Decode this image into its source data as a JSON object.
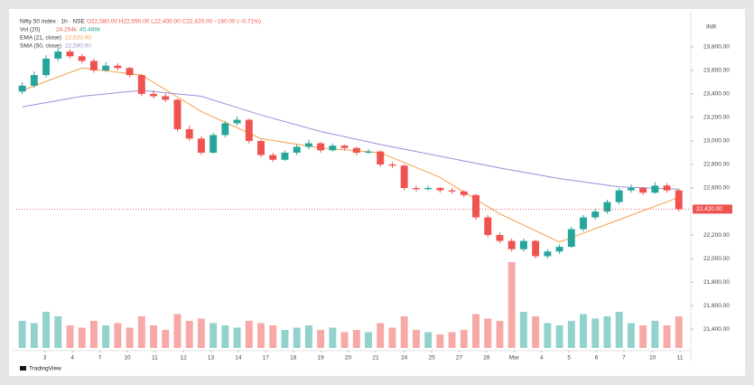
{
  "chart_data": {
    "type": "candlestick",
    "title": "Nifty 50 Index · 1h · NSE",
    "ohlc_label": "O22,580.00 H22,590.00 L22,400.00 C22,420.00 −160.00 (−0.71%)",
    "currency": "INR",
    "vol_label": "Vol (20)",
    "vol_values": [
      "24.294k",
      "45.466k"
    ],
    "up_color": "#26a69a",
    "down_color": "#ef5350",
    "candles": [
      [
        23420,
        23500,
        23400,
        23470
      ],
      [
        23470,
        23590,
        23450,
        23560
      ],
      [
        23560,
        23730,
        23540,
        23700
      ],
      [
        23700,
        23790,
        23680,
        23760
      ],
      [
        23760,
        23780,
        23700,
        23720
      ],
      [
        23720,
        23740,
        23660,
        23680
      ],
      [
        23680,
        23700,
        23580,
        23600
      ],
      [
        23600,
        23670,
        23590,
        23640
      ],
      [
        23640,
        23660,
        23600,
        23620
      ],
      [
        23620,
        23630,
        23540,
        23560
      ],
      [
        23560,
        23570,
        23380,
        23400
      ],
      [
        23400,
        23430,
        23360,
        23380
      ],
      [
        23380,
        23400,
        23330,
        23350
      ],
      [
        23350,
        23360,
        23080,
        23100
      ],
      [
        23100,
        23130,
        23000,
        23020
      ],
      [
        23020,
        23040,
        22880,
        22900
      ],
      [
        22900,
        23070,
        22890,
        23050
      ],
      [
        23050,
        23170,
        23030,
        23150
      ],
      [
        23150,
        23210,
        23130,
        23180
      ],
      [
        23180,
        23190,
        22980,
        23000
      ],
      [
        23000,
        23010,
        22860,
        22880
      ],
      [
        22880,
        22900,
        22820,
        22840
      ],
      [
        22840,
        22920,
        22830,
        22900
      ],
      [
        22900,
        22970,
        22880,
        22950
      ],
      [
        22950,
        23010,
        22930,
        22980
      ],
      [
        22980,
        22990,
        22900,
        22920
      ],
      [
        22920,
        22980,
        22910,
        22960
      ],
      [
        22960,
        22970,
        22920,
        22940
      ],
      [
        22940,
        22950,
        22880,
        22900
      ],
      [
        22900,
        22930,
        22890,
        22910
      ],
      [
        22910,
        22920,
        22780,
        22800
      ],
      [
        22800,
        22820,
        22770,
        22790
      ],
      [
        22790,
        22800,
        22580,
        22600
      ],
      [
        22600,
        22620,
        22570,
        22590
      ],
      [
        22590,
        22620,
        22580,
        22600
      ],
      [
        22600,
        22610,
        22560,
        22580
      ],
      [
        22580,
        22600,
        22550,
        22570
      ],
      [
        22570,
        22580,
        22520,
        22540
      ],
      [
        22540,
        22550,
        22330,
        22350
      ],
      [
        22350,
        22370,
        22180,
        22200
      ],
      [
        22200,
        22220,
        22130,
        22150
      ],
      [
        22150,
        22170,
        22060,
        22080
      ],
      [
        22080,
        22170,
        22060,
        22150
      ],
      [
        22150,
        22160,
        22000,
        22020
      ],
      [
        22020,
        22080,
        22000,
        22060
      ],
      [
        22060,
        22120,
        22040,
        22100
      ],
      [
        22100,
        22270,
        22090,
        22250
      ],
      [
        22250,
        22370,
        22230,
        22350
      ],
      [
        22350,
        22420,
        22330,
        22400
      ],
      [
        22400,
        22500,
        22380,
        22480
      ],
      [
        22480,
        22600,
        22460,
        22580
      ],
      [
        22580,
        22630,
        22560,
        22600
      ],
      [
        22600,
        22610,
        22540,
        22560
      ],
      [
        22560,
        22650,
        22550,
        22620
      ],
      [
        22620,
        22640,
        22560,
        22580
      ],
      [
        22580,
        22590,
        22400,
        22420
      ]
    ],
    "volume": [
      60,
      55,
      80,
      70,
      50,
      45,
      60,
      50,
      55,
      45,
      70,
      50,
      40,
      75,
      60,
      65,
      55,
      50,
      45,
      60,
      55,
      50,
      40,
      45,
      50,
      40,
      45,
      35,
      40,
      35,
      55,
      45,
      70,
      40,
      35,
      30,
      35,
      40,
      75,
      65,
      60,
      190,
      80,
      70,
      55,
      50,
      60,
      75,
      65,
      70,
      80,
      55,
      50,
      60,
      50,
      70
    ],
    "volume_ylim": [
      0,
      200
    ],
    "series": [
      {
        "name": "EMA (21, close)",
        "value_label": "22,520.00",
        "color": "#f5a04a",
        "x": [
          0,
          5,
          10,
          15,
          20,
          25,
          30,
          35,
          40,
          45,
          50,
          55
        ],
        "values": [
          23430,
          23620,
          23560,
          23250,
          23020,
          22940,
          22900,
          22690,
          22380,
          22140,
          22330,
          22520
        ]
      },
      {
        "name": "SMA (50, close)",
        "value_label": "22,590.00",
        "color": "#9c8fd8",
        "x": [
          0,
          5,
          10,
          15,
          20,
          25,
          30,
          35,
          40,
          45,
          50,
          55
        ],
        "values": [
          23290,
          23380,
          23430,
          23380,
          23220,
          23080,
          22970,
          22870,
          22770,
          22680,
          22610,
          22590
        ]
      }
    ],
    "xlim": [
      -0.5,
      56
    ],
    "xticks": [
      {
        "value": 1.9,
        "label": "3"
      },
      {
        "value": 4.2,
        "label": "4"
      },
      {
        "value": 6.5,
        "label": "7"
      },
      {
        "value": 8.8,
        "label": "10"
      },
      {
        "value": 11.1,
        "label": "11"
      },
      {
        "value": 13.5,
        "label": "12"
      },
      {
        "value": 15.8,
        "label": "13"
      },
      {
        "value": 18.1,
        "label": "14"
      },
      {
        "value": 20.4,
        "label": "17"
      },
      {
        "value": 22.7,
        "label": "18"
      },
      {
        "value": 25.0,
        "label": "19"
      },
      {
        "value": 27.3,
        "label": "20"
      },
      {
        "value": 29.6,
        "label": "21"
      },
      {
        "value": 32.0,
        "label": "24"
      },
      {
        "value": 34.3,
        "label": "25"
      },
      {
        "value": 36.6,
        "label": "27"
      },
      {
        "value": 38.9,
        "label": "28"
      },
      {
        "value": 41.2,
        "label": "Mar"
      },
      {
        "value": 43.5,
        "label": "4"
      },
      {
        "value": 45.8,
        "label": "5"
      },
      {
        "value": 48.1,
        "label": "6"
      },
      {
        "value": 50.4,
        "label": "7"
      },
      {
        "value": 52.8,
        "label": "10"
      },
      {
        "value": 55.1,
        "label": "11"
      }
    ],
    "ylim": [
      21240,
      24060
    ],
    "yticks": [
      {
        "value": 21400,
        "label": "21,400.00"
      },
      {
        "value": 21600,
        "label": "21,600.00"
      },
      {
        "value": 21800,
        "label": "21,800.00"
      },
      {
        "value": 22000,
        "label": "22,000.00"
      },
      {
        "value": 22200,
        "label": "22,200.00"
      },
      {
        "value": 22600,
        "label": "22,600.00"
      },
      {
        "value": 22800,
        "label": "22,800.00"
      },
      {
        "value": 23000,
        "label": "23,000.00"
      },
      {
        "value": 23200,
        "label": "23,200.00"
      },
      {
        "value": 23400,
        "label": "23,400.00"
      },
      {
        "value": 23600,
        "label": "23,600.00"
      },
      {
        "value": 23800,
        "label": "23,800.00"
      }
    ],
    "last_price": 22420,
    "last_price_label": "22,420.00",
    "grid": false
  },
  "brand": "TradingView"
}
